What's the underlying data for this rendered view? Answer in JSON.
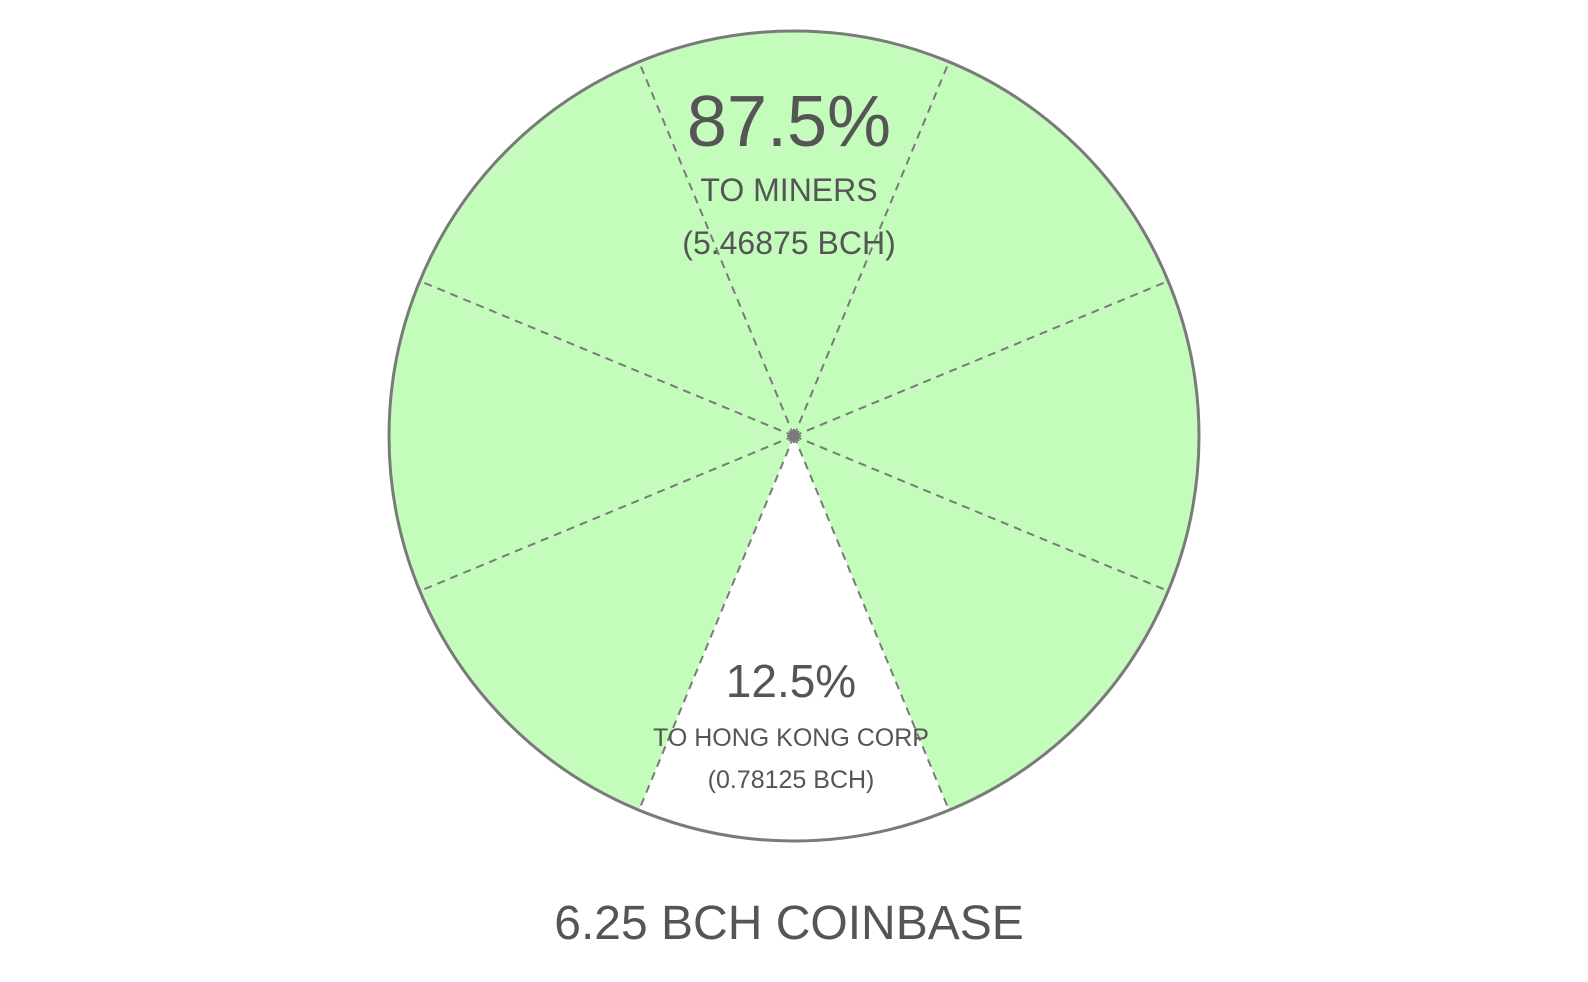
{
  "chart_data": {
    "type": "pie",
    "total_label": "6.25 BCH COINBASE",
    "slices": [
      {
        "percent_label": "87.5%",
        "name": "TO MINERS",
        "amount": "(5.46875 BCH)",
        "value": 5.46875,
        "color": "#c4fcbc"
      },
      {
        "percent_label": "12.5%",
        "name": "TO HONG KONG CORP",
        "amount": "(0.78125 BCH)",
        "value": 0.78125,
        "color": "#ffffff"
      }
    ],
    "divisions": 8,
    "outline_color": "#7a7a7a",
    "divider_color": "#7a7a7a"
  }
}
